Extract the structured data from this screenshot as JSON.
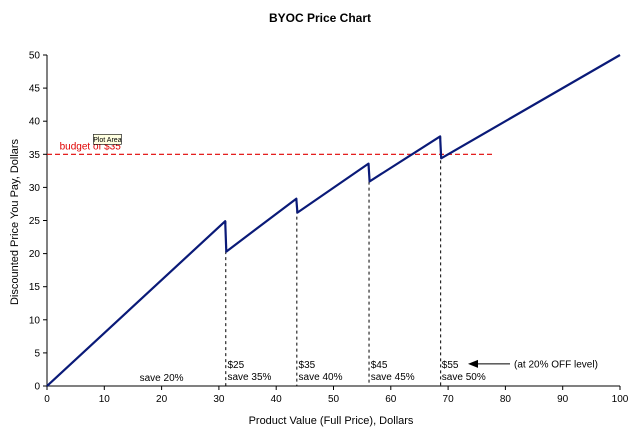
{
  "chart_data": {
    "type": "line",
    "title": "BYOC Price Chart",
    "xlabel": "Product Value (Full Price), Dollars",
    "ylabel": "Discounted Price You Pay, Dollars",
    "xlim": [
      0,
      100
    ],
    "ylim": [
      0,
      50
    ],
    "xticks": [
      "0",
      "10",
      "20",
      "30",
      "40",
      "50",
      "60",
      "70",
      "80",
      "90",
      "100"
    ],
    "yticks": [
      "0",
      "5",
      "10",
      "15",
      "20",
      "25",
      "30",
      "35",
      "40",
      "45",
      "50"
    ],
    "grid": false,
    "series": [
      {
        "color": "#0a1a78",
        "points": [
          [
            0,
            0
          ],
          [
            31.1,
            24.9
          ],
          [
            31.3,
            20.3
          ],
          [
            43.5,
            28.3
          ],
          [
            43.7,
            26.2
          ],
          [
            56.1,
            33.6
          ],
          [
            56.3,
            30.9
          ],
          [
            68.6,
            37.7
          ],
          [
            68.8,
            34.4
          ],
          [
            100,
            50
          ]
        ]
      }
    ],
    "reference_line": {
      "y": 35,
      "x_range": [
        0,
        78
      ],
      "label": "budget of $35",
      "color": "#e00000"
    },
    "drop_lines": [
      31.2,
      43.6,
      56.2,
      68.7
    ],
    "annotations": [
      {
        "x": 20,
        "y": 1.2,
        "line1": "save 20%",
        "line2": ""
      },
      {
        "x": 31.5,
        "y": 3.2,
        "line1": "$25",
        "line2": "save 35%"
      },
      {
        "x": 43.9,
        "y": 3.2,
        "line1": "$35",
        "line2": "save 40%"
      },
      {
        "x": 56.5,
        "y": 3.2,
        "line1": "$45",
        "line2": "save 45%"
      },
      {
        "x": 68.9,
        "y": 3.2,
        "line1": "$55",
        "line2": "save 50%"
      }
    ],
    "level_note": "(at 20% OFF level)",
    "tooltip": "Plot Area"
  }
}
